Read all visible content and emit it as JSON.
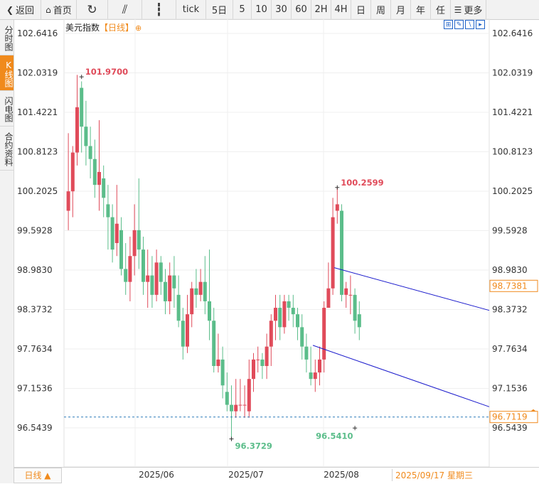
{
  "toolbar": [
    {
      "label": "返回",
      "icon": "back-arrow-icon"
    },
    {
      "label": "首页",
      "icon": "home-icon"
    },
    {
      "label": "",
      "icon": "refresh-icon"
    },
    {
      "label": "",
      "icon": "line-chart-icon"
    },
    {
      "label": "",
      "icon": "candlestick-icon"
    },
    {
      "label": "tick"
    },
    {
      "label": "5日"
    },
    {
      "label": "5"
    },
    {
      "label": "10"
    },
    {
      "label": "30"
    },
    {
      "label": "60"
    },
    {
      "label": "2H"
    },
    {
      "label": "4H"
    },
    {
      "label": "日"
    },
    {
      "label": "周"
    },
    {
      "label": "月"
    },
    {
      "label": "年"
    },
    {
      "label": "任"
    },
    {
      "label": "更多",
      "icon": "menu-icon"
    }
  ],
  "side_tabs": [
    {
      "label": "分时图",
      "active": false
    },
    {
      "label": "K线图",
      "active": true
    },
    {
      "label": "闪电图",
      "active": false
    },
    {
      "label": "合约资料",
      "active": false
    }
  ],
  "chart_header": {
    "name": "美元指数",
    "period": "【日线】",
    "gear": "⊕"
  },
  "tool_icons": [
    "expand-icon",
    "draw-icon",
    "line-tool-icon",
    "next-icon"
  ],
  "bottom": {
    "period_select": "日线 ▲",
    "cursor_date": "2025/09/17 星期三"
  },
  "colors": {
    "up": "#e04b5a",
    "down": "#5bbd8a",
    "channel": "#1a1acc",
    "ref_line": "#2a7ab8",
    "accent": "#f08a1c"
  },
  "chart_data": {
    "type": "candlestick",
    "instrument": "美元指数",
    "period": "日线",
    "y_ticks": [
      "102.6416",
      "102.0319",
      "101.4221",
      "100.8123",
      "100.2025",
      "99.5928",
      "98.9830",
      "98.3732",
      "97.7634",
      "97.1536",
      "96.5439"
    ],
    "ylim": [
      96.5439,
      102.6416
    ],
    "x_labels": [
      "2025/06",
      "2025/07",
      "2025/08"
    ],
    "current_price": "98.7381",
    "last_price": "96.7119",
    "annotations": [
      {
        "text": "101.9700",
        "value": 101.97,
        "kind": "high"
      },
      {
        "text": "100.2599",
        "value": 100.2599,
        "kind": "high"
      },
      {
        "text": "96.3729",
        "value": 96.3729,
        "kind": "low"
      },
      {
        "text": "96.5410",
        "value": 96.541,
        "kind": "low"
      }
    ],
    "channel_lines": [
      {
        "from": [
          0,
          99.02
        ],
        "to": [
          66,
          98.36
        ]
      },
      {
        "from": [
          0,
          97.81
        ],
        "to": [
          66,
          96.87
        ]
      }
    ],
    "candles": [
      [
        99.9,
        100.2,
        101.1,
        99.6
      ],
      [
        100.2,
        100.8,
        100.9,
        99.8
      ],
      [
        100.8,
        101.5,
        102.0,
        100.6
      ],
      [
        101.8,
        101.2,
        101.9,
        100.8
      ],
      [
        101.2,
        100.9,
        101.6,
        100.6
      ],
      [
        100.9,
        100.7,
        101.2,
        100.4
      ],
      [
        100.7,
        100.3,
        101.0,
        100.1
      ],
      [
        100.3,
        100.5,
        101.3,
        99.9
      ],
      [
        100.4,
        100.1,
        100.6,
        99.8
      ],
      [
        100.0,
        99.8,
        100.3,
        99.3
      ],
      [
        99.8,
        99.3,
        100.0,
        99.1
      ],
      [
        99.4,
        99.7,
        100.3,
        99.2
      ],
      [
        99.6,
        99.0,
        99.8,
        98.9
      ],
      [
        99.0,
        98.8,
        99.4,
        98.6
      ],
      [
        98.8,
        99.2,
        99.5,
        98.5
      ],
      [
        99.2,
        99.6,
        100.0,
        98.9
      ],
      [
        99.6,
        99.3,
        100.4,
        99.0
      ],
      [
        99.3,
        98.8,
        99.5,
        98.6
      ],
      [
        98.8,
        98.9,
        99.3,
        98.4
      ],
      [
        98.9,
        98.6,
        99.2,
        98.4
      ],
      [
        98.6,
        99.1,
        99.3,
        98.5
      ],
      [
        99.1,
        98.8,
        99.2,
        98.6
      ],
      [
        98.8,
        98.5,
        99.0,
        98.3
      ],
      [
        98.5,
        98.9,
        99.1,
        98.3
      ],
      [
        98.9,
        98.7,
        99.2,
        98.4
      ],
      [
        98.6,
        98.2,
        98.9,
        98.1
      ],
      [
        98.2,
        97.8,
        98.4,
        97.6
      ],
      [
        97.8,
        98.3,
        98.6,
        97.7
      ],
      [
        98.3,
        98.7,
        98.8,
        98.1
      ],
      [
        98.7,
        98.6,
        99.0,
        98.4
      ],
      [
        98.6,
        98.8,
        99.0,
        98.5
      ],
      [
        98.8,
        98.5,
        99.2,
        98.3
      ],
      [
        98.5,
        98.2,
        99.3,
        97.9
      ],
      [
        98.2,
        97.5,
        98.4,
        97.4
      ],
      [
        97.5,
        97.6,
        98.0,
        97.4
      ],
      [
        97.6,
        97.2,
        97.8,
        97.0
      ],
      [
        97.1,
        96.9,
        97.4,
        96.8
      ],
      [
        96.9,
        96.8,
        97.2,
        96.4
      ],
      [
        96.8,
        96.9,
        97.3,
        96.7
      ],
      [
        96.9,
        96.9,
        97.3,
        96.8
      ],
      [
        96.9,
        96.9,
        97.2,
        96.7
      ],
      [
        96.8,
        97.3,
        97.6,
        96.7
      ],
      [
        97.3,
        97.6,
        97.7,
        97.1
      ],
      [
        97.6,
        97.6,
        97.8,
        97.4
      ],
      [
        97.6,
        97.5,
        97.7,
        97.3
      ],
      [
        97.5,
        97.8,
        98.0,
        97.3
      ],
      [
        97.8,
        98.2,
        98.3,
        97.5
      ],
      [
        98.2,
        98.4,
        98.6,
        97.9
      ],
      [
        98.4,
        98.1,
        98.6,
        97.9
      ],
      [
        98.1,
        98.5,
        98.6,
        98.0
      ],
      [
        98.5,
        98.4,
        98.6,
        98.2
      ],
      [
        98.4,
        98.3,
        98.6,
        98.1
      ],
      [
        98.3,
        98.1,
        98.4,
        97.9
      ],
      [
        98.1,
        97.8,
        98.3,
        97.6
      ],
      [
        97.8,
        97.6,
        98.0,
        97.4
      ],
      [
        97.4,
        97.3,
        97.8,
        97.2
      ],
      [
        97.3,
        97.4,
        97.6,
        97.1
      ],
      [
        97.4,
        97.6,
        97.8,
        97.2
      ],
      [
        97.6,
        98.4,
        98.5,
        97.4
      ],
      [
        98.4,
        98.7,
        99.1,
        98.5
      ],
      [
        98.7,
        99.8,
        100.1,
        98.6
      ],
      [
        99.9,
        100.0,
        100.26,
        99.7
      ],
      [
        99.9,
        98.6,
        100.0,
        98.5
      ],
      [
        98.6,
        98.7,
        98.8,
        98.4
      ],
      [
        98.6,
        98.6,
        98.9,
        98.3
      ],
      [
        98.6,
        98.2,
        98.7,
        98.0
      ],
      [
        98.3,
        98.1,
        98.5,
        97.9
      ]
    ]
  }
}
